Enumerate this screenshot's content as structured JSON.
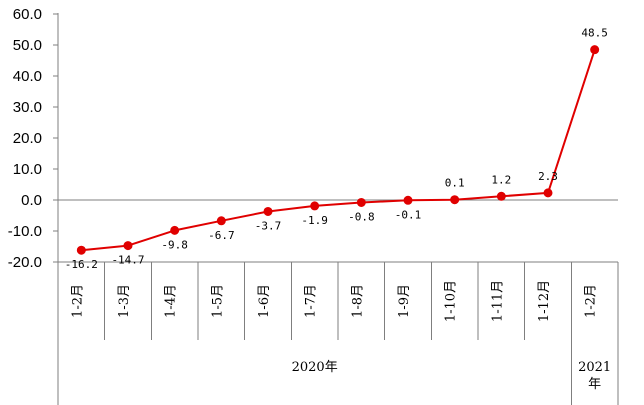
{
  "chart_data": {
    "type": "line",
    "title": "",
    "xlabel": "",
    "ylabel": "",
    "categories": [
      "1-2月",
      "1-3月",
      "1-4月",
      "1-5月",
      "1-6月",
      "1-7月",
      "1-8月",
      "1-9月",
      "1-10月",
      "1-11月",
      "1-12月",
      "1-2月"
    ],
    "year_groups": [
      {
        "label": "2020年",
        "start": 0,
        "end": 10
      },
      {
        "label": "2021年",
        "start": 11,
        "end": 11
      }
    ],
    "series": [
      {
        "values": [
          -16.2,
          -14.7,
          -9.8,
          -6.7,
          -3.7,
          -1.9,
          -0.8,
          -0.1,
          0.1,
          1.2,
          2.3,
          48.5
        ],
        "value_labels": [
          "-16.2",
          "-14.7",
          "-9.8",
          "-6.7",
          "-3.7",
          "-1.9",
          "-0.8",
          "-0.1",
          "0.1",
          "1.2",
          "2.3",
          "48.5"
        ],
        "color": "#e00000"
      }
    ],
    "ylim": [
      -20,
      60
    ],
    "y_ticks": [
      60,
      50,
      40,
      30,
      20,
      10,
      0,
      -10,
      -20
    ],
    "y_tick_labels": [
      "60.0",
      "50.0",
      "40.0",
      "30.0",
      "20.0",
      "10.0",
      "0.0",
      "-10.0",
      "-20.0"
    ],
    "grid": false,
    "legend": "none",
    "colors": {
      "series": "#e00000",
      "axis": "#7f7f7f",
      "text": "#000000"
    }
  }
}
